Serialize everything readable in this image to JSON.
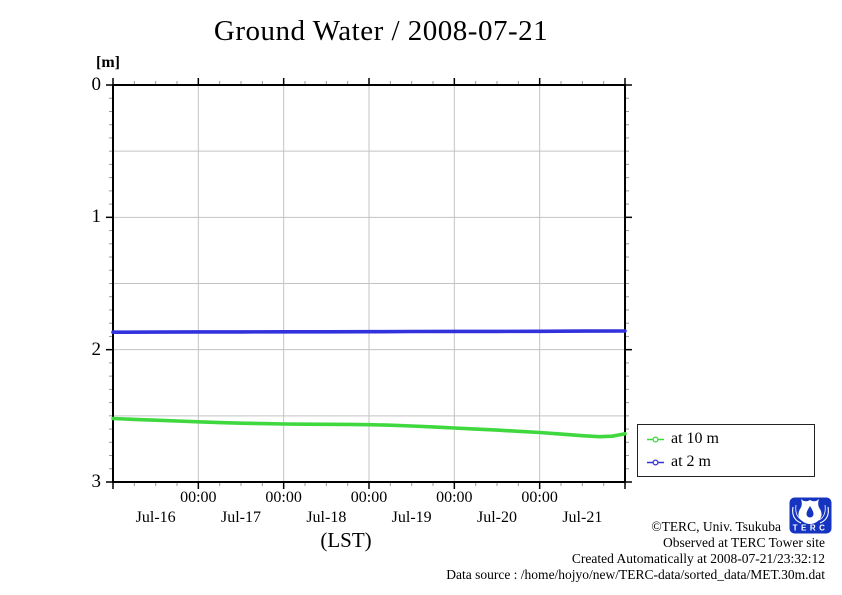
{
  "title": "Ground Water / 2008-07-21",
  "y_axis_unit": "[m]",
  "x_axis_label": "(LST)",
  "legend": {
    "items": [
      {
        "label": "at 10 m",
        "color": "#3fd83f"
      },
      {
        "label": "at 2 m",
        "color": "#3232dc"
      }
    ]
  },
  "footer": {
    "copyright": "©TERC, Univ. Tsukuba",
    "observed": "Observed at TERC Tower site",
    "created": "Created Automatically at 2008-07-21/23:32:12",
    "data_source": "Data source : /home/hojyo/new/TERC-data/sorted_data/MET.30m.dat"
  },
  "logo_text": "TERC",
  "colors": {
    "grid": "#c3c3c3",
    "axis": "#000000",
    "minor_tick": "#999999",
    "logo_blue": "#1535c0"
  },
  "chart_data": {
    "type": "line",
    "title": "Ground Water / 2008-07-21",
    "xlabel": "(LST)",
    "ylabel": "[m]",
    "ylim": [
      0,
      3
    ],
    "y_inverted_depth": true,
    "y_ticks": [
      0,
      1,
      2,
      3
    ],
    "y_minor_step": 0.1,
    "y_gridline_step": 0.5,
    "x_range_days": [
      0,
      6
    ],
    "x_minor_step_days": 0.25,
    "x_day_labels": [
      "Jul-16",
      "Jul-17",
      "Jul-18",
      "Jul-19",
      "Jul-20",
      "Jul-21"
    ],
    "x_midnight_label": "00:00",
    "grid": true,
    "legend_position": "outside-right-bottom",
    "series": [
      {
        "name": "at 10 m",
        "color": "#3fd83f",
        "points": [
          [
            0,
            2.52
          ],
          [
            0.25,
            2.527
          ],
          [
            0.5,
            2.533
          ],
          [
            0.75,
            2.539
          ],
          [
            1,
            2.545
          ],
          [
            1.25,
            2.551
          ],
          [
            1.5,
            2.556
          ],
          [
            1.75,
            2.559
          ],
          [
            2,
            2.562
          ],
          [
            2.25,
            2.563
          ],
          [
            2.5,
            2.564
          ],
          [
            2.75,
            2.565
          ],
          [
            3,
            2.567
          ],
          [
            3.25,
            2.571
          ],
          [
            3.5,
            2.577
          ],
          [
            3.75,
            2.584
          ],
          [
            4,
            2.592
          ],
          [
            4.25,
            2.6
          ],
          [
            4.5,
            2.608
          ],
          [
            4.75,
            2.617
          ],
          [
            5,
            2.626
          ],
          [
            5.25,
            2.638
          ],
          [
            5.5,
            2.65
          ],
          [
            5.7,
            2.658
          ],
          [
            5.85,
            2.654
          ],
          [
            5.95,
            2.642
          ],
          [
            6,
            2.635
          ]
        ]
      },
      {
        "name": "at 2 m",
        "color": "#3232dc",
        "points": [
          [
            0,
            1.868
          ],
          [
            0.5,
            1.867
          ],
          [
            1,
            1.866
          ],
          [
            1.5,
            1.866
          ],
          [
            2,
            1.865
          ],
          [
            2.5,
            1.865
          ],
          [
            3,
            1.864
          ],
          [
            3.5,
            1.863
          ],
          [
            4,
            1.862
          ],
          [
            4.5,
            1.862
          ],
          [
            5,
            1.861
          ],
          [
            5.5,
            1.86
          ],
          [
            6,
            1.859
          ]
        ]
      }
    ]
  }
}
